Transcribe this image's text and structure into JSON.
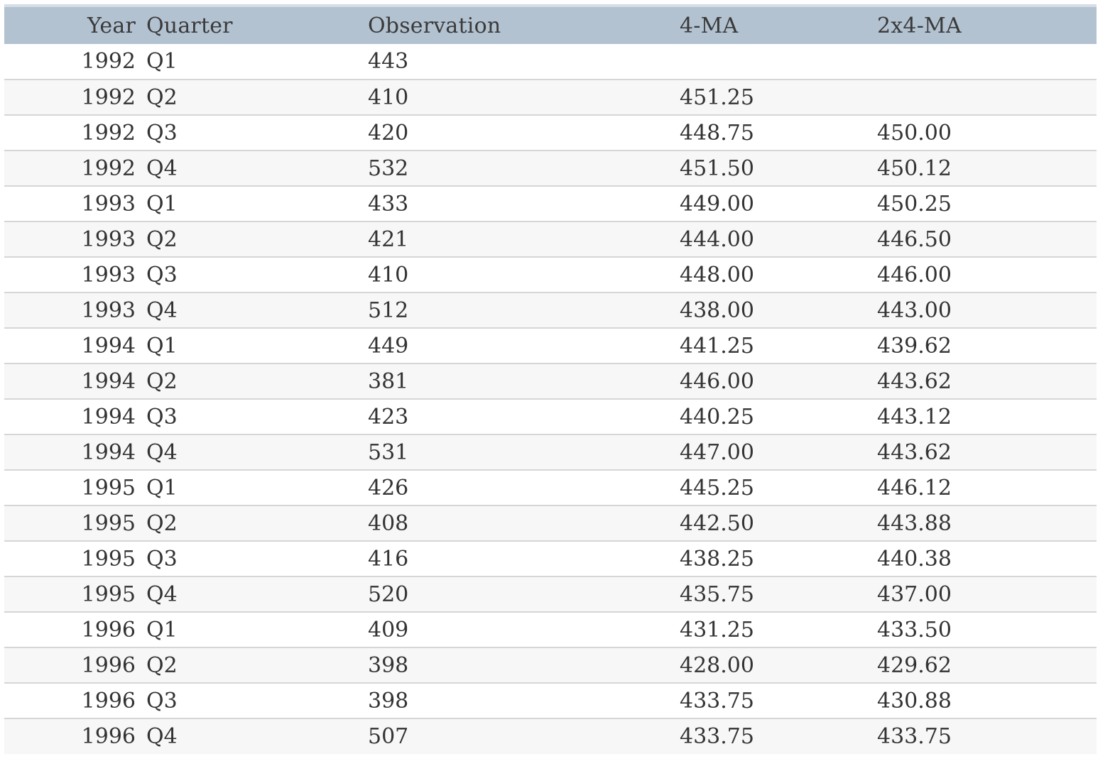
{
  "table": {
    "headers": {
      "year": "Year",
      "quarter": "Quarter",
      "observation": "Observation",
      "ma4": "4-MA",
      "ma2x4": "2x4-MA"
    },
    "rows": [
      {
        "year": "1992",
        "quarter": "Q1",
        "observation": "443",
        "ma4": "",
        "ma2x4": ""
      },
      {
        "year": "1992",
        "quarter": "Q2",
        "observation": "410",
        "ma4": "451.25",
        "ma2x4": ""
      },
      {
        "year": "1992",
        "quarter": "Q3",
        "observation": "420",
        "ma4": "448.75",
        "ma2x4": "450.00"
      },
      {
        "year": "1992",
        "quarter": "Q4",
        "observation": "532",
        "ma4": "451.50",
        "ma2x4": "450.12"
      },
      {
        "year": "1993",
        "quarter": "Q1",
        "observation": "433",
        "ma4": "449.00",
        "ma2x4": "450.25"
      },
      {
        "year": "1993",
        "quarter": "Q2",
        "observation": "421",
        "ma4": "444.00",
        "ma2x4": "446.50"
      },
      {
        "year": "1993",
        "quarter": "Q3",
        "observation": "410",
        "ma4": "448.00",
        "ma2x4": "446.00"
      },
      {
        "year": "1993",
        "quarter": "Q4",
        "observation": "512",
        "ma4": "438.00",
        "ma2x4": "443.00"
      },
      {
        "year": "1994",
        "quarter": "Q1",
        "observation": "449",
        "ma4": "441.25",
        "ma2x4": "439.62"
      },
      {
        "year": "1994",
        "quarter": "Q2",
        "observation": "381",
        "ma4": "446.00",
        "ma2x4": "443.62"
      },
      {
        "year": "1994",
        "quarter": "Q3",
        "observation": "423",
        "ma4": "440.25",
        "ma2x4": "443.12"
      },
      {
        "year": "1994",
        "quarter": "Q4",
        "observation": "531",
        "ma4": "447.00",
        "ma2x4": "443.62"
      },
      {
        "year": "1995",
        "quarter": "Q1",
        "observation": "426",
        "ma4": "445.25",
        "ma2x4": "446.12"
      },
      {
        "year": "1995",
        "quarter": "Q2",
        "observation": "408",
        "ma4": "442.50",
        "ma2x4": "443.88"
      },
      {
        "year": "1995",
        "quarter": "Q3",
        "observation": "416",
        "ma4": "438.25",
        "ma2x4": "440.38"
      },
      {
        "year": "1995",
        "quarter": "Q4",
        "observation": "520",
        "ma4": "435.75",
        "ma2x4": "437.00"
      },
      {
        "year": "1996",
        "quarter": "Q1",
        "observation": "409",
        "ma4": "431.25",
        "ma2x4": "433.50"
      },
      {
        "year": "1996",
        "quarter": "Q2",
        "observation": "398",
        "ma4": "428.00",
        "ma2x4": "429.62"
      },
      {
        "year": "1996",
        "quarter": "Q3",
        "observation": "398",
        "ma4": "433.75",
        "ma2x4": "430.88"
      },
      {
        "year": "1996",
        "quarter": "Q4",
        "observation": "507",
        "ma4": "433.75",
        "ma2x4": "433.75"
      }
    ]
  },
  "colors": {
    "header_bg": "#b3c2d1",
    "stripe_bg": "#f7f7f7",
    "row_border": "#d6d6d6",
    "text": "#333333"
  }
}
